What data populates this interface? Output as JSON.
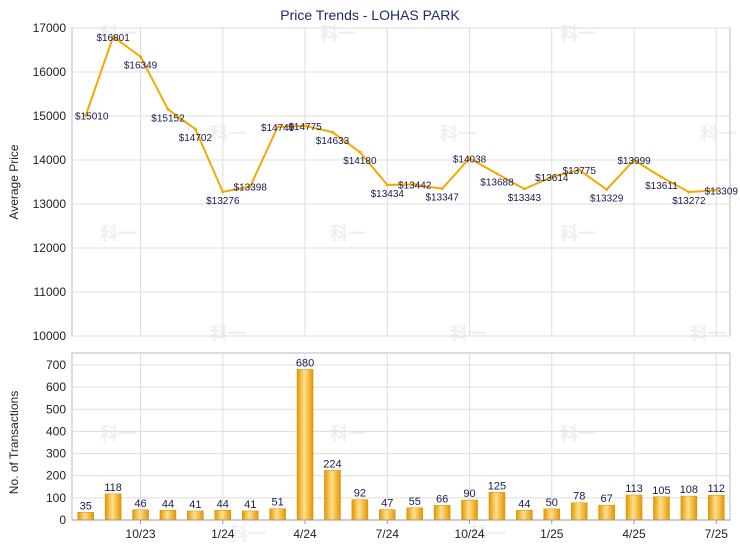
{
  "chart_data": [
    {
      "type": "line",
      "title": "Price Trends - LOHAS PARK",
      "ylabel": "Average Price",
      "xlabel": "",
      "ylim": [
        10000,
        17000
      ],
      "yticks": [
        10000,
        11000,
        12000,
        13000,
        14000,
        15000,
        16000,
        17000
      ],
      "grid": true,
      "line_color": "#f5a800",
      "values": [
        15010,
        16801,
        16349,
        15152,
        14702,
        13276,
        13398,
        14749,
        14775,
        14633,
        14180,
        13434,
        13442,
        13347,
        14038,
        13688,
        13343,
        13614,
        13775,
        13329,
        13999,
        13611,
        13272,
        13309
      ],
      "labels": [
        "$15010",
        "$16801",
        "$16349",
        "$15152",
        "$14702",
        "$13276",
        "$13398",
        "$14749",
        "$14775",
        "$14633",
        "$14180",
        "$13434",
        "$13442",
        "$13347",
        "$14038",
        "$13688",
        "$13343",
        "$13614",
        "$13775",
        "$13329",
        "$13999",
        "$13611",
        "$13272",
        "$13309"
      ]
    },
    {
      "type": "bar",
      "ylabel": "No. of Transactions",
      "xlabel": "",
      "ylim": [
        0,
        700
      ],
      "yticks": [
        0,
        100,
        200,
        300,
        400,
        500,
        600,
        700
      ],
      "grid": true,
      "bar_color": "#f5a800",
      "values": [
        35,
        118,
        46,
        44,
        41,
        44,
        41,
        51,
        680,
        224,
        92,
        47,
        55,
        66,
        90,
        125,
        44,
        50,
        78,
        67,
        113,
        105,
        108,
        112
      ],
      "x_tick_labels": [
        {
          "index": 2,
          "label": "10/23"
        },
        {
          "index": 5,
          "label": "1/24"
        },
        {
          "index": 8,
          "label": "4/24"
        },
        {
          "index": 11,
          "label": "7/24"
        },
        {
          "index": 14,
          "label": "10/24"
        },
        {
          "index": 17,
          "label": "1/25"
        },
        {
          "index": 20,
          "label": "4/25"
        },
        {
          "index": 23,
          "label": "7/25"
        }
      ]
    }
  ],
  "watermark_text": "科一"
}
